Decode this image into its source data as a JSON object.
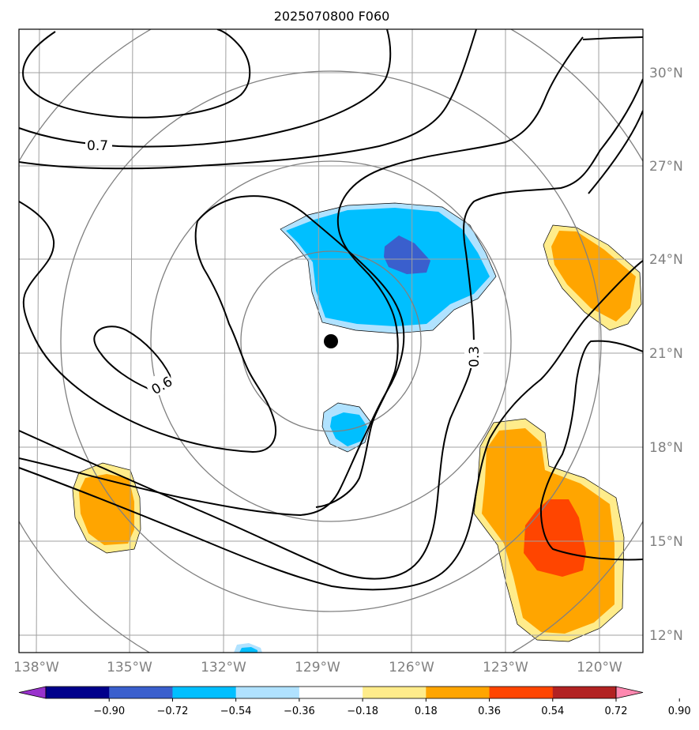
{
  "title": "2025070800 F060",
  "lat_labels": [
    "30°N",
    "27°N",
    "24°N",
    "21°N",
    "18°N",
    "15°N",
    "12°N"
  ],
  "lon_labels": [
    "138°W",
    "135°W",
    "132°W",
    "129°W",
    "126°W",
    "123°W",
    "120°W"
  ],
  "contour_labels": [
    "0.7",
    "0.6",
    "0.3"
  ],
  "colorbar": {
    "ticks": [
      "−0.90",
      "−0.72",
      "−0.54",
      "−0.36",
      "−0.18",
      "0.18",
      "0.36",
      "0.54",
      "0.72",
      "0.90"
    ],
    "colors": [
      "#9932cc",
      "#00008b",
      "#3a5fcd",
      "#00bfff",
      "#b0e2ff",
      "#ffffff",
      "#ffec8b",
      "#ffa500",
      "#ff4500",
      "#b22222",
      "#ff88b0"
    ],
    "extend": "both"
  },
  "center_marker": {
    "lat": 21.4,
    "lon": -128.6
  },
  "colors": {
    "grid": "#a0a0a0",
    "ring": "#808080",
    "axis_label": "#808080"
  }
}
